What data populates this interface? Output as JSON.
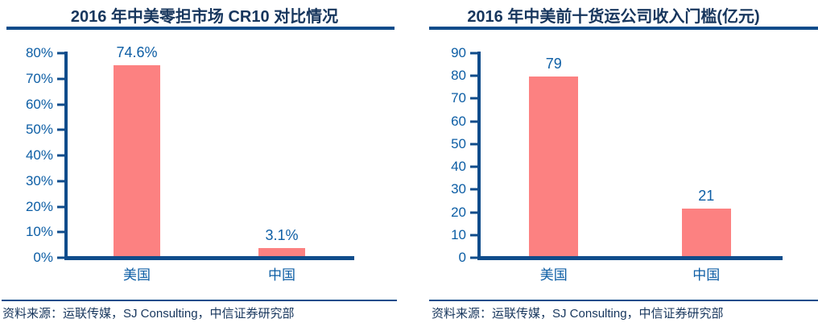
{
  "colors": {
    "bar": "#FC8181",
    "axis_navy": "#0F4C8B",
    "chart_text_blue": "#0D5EA5",
    "title_navy": "#17365D"
  },
  "chart_data": [
    {
      "type": "bar",
      "title": "2016 年中美零担市场 CR10 对比情况",
      "categories": [
        "美国",
        "中国"
      ],
      "values": [
        74.6,
        3.1
      ],
      "value_labels": [
        "74.6%",
        "3.1%"
      ],
      "xlabel": "",
      "ylabel": "",
      "ylim": [
        0,
        80
      ],
      "ytick_step": 10,
      "ytick_labels": [
        "80%",
        "70%",
        "60%",
        "50%",
        "40%",
        "30%",
        "20%",
        "10%",
        "0%"
      ],
      "grid": false,
      "legend": "none",
      "source": "资料来源：运联传媒，SJ Consulting，中信证券研究部"
    },
    {
      "type": "bar",
      "title": "2016 年中美前十货运公司收入门槛(亿元)",
      "categories": [
        "美国",
        "中国"
      ],
      "values": [
        79,
        21
      ],
      "value_labels": [
        "79",
        "21"
      ],
      "xlabel": "",
      "ylabel": "",
      "ylim": [
        0,
        90
      ],
      "ytick_step": 10,
      "ytick_labels": [
        "90",
        "80",
        "70",
        "60",
        "50",
        "40",
        "30",
        "20",
        "10",
        "0"
      ],
      "grid": false,
      "legend": "none",
      "source": "资料来源：运联传媒，SJ Consulting，中信证券研究部"
    }
  ]
}
